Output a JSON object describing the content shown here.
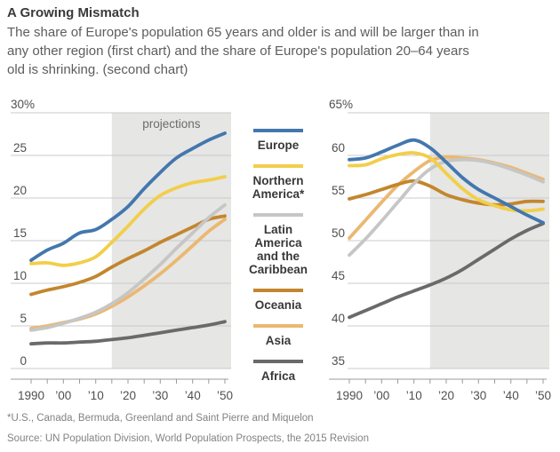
{
  "header": {
    "title": "A Growing Mismatch",
    "subtitle_lines": [
      "The share of Europe's population 65 years and older is and will be larger than in",
      "any other region (first chart) and the share of Europe's population 20–64 years",
      "old is shrinking. (second chart)"
    ]
  },
  "colors": {
    "projection_shade": "#E6E6E5",
    "gridline": "#CBCBCB",
    "axis": "#9B9B9B",
    "tick_label": "#4F4F4F",
    "note_label": "#6B6B6B",
    "europe": "#4377AD",
    "northern_america": "#F2CE4A",
    "latin_america": "#C6C6C4",
    "oceania": "#C3862E",
    "asia": "#EBB871",
    "africa": "#6A6A6A"
  },
  "legend": {
    "items": [
      {
        "label": "Europe",
        "color": "#4377AD"
      },
      {
        "label": "Northern America*",
        "color": "#F2CE4A"
      },
      {
        "label": "Latin America and the Caribbean",
        "color": "#C6C6C4"
      },
      {
        "label": "Oceania",
        "color": "#C3862E"
      },
      {
        "label": "Asia",
        "color": "#EBB871"
      },
      {
        "label": "Africa",
        "color": "#6A6A6A"
      }
    ]
  },
  "chart_data": [
    {
      "type": "line",
      "description": "Share of population 65 years and older, percent",
      "top_axis_label": "30%",
      "note": "projections",
      "x": [
        1990,
        1995,
        2000,
        2005,
        2010,
        2015,
        2020,
        2025,
        2030,
        2035,
        2040,
        2045,
        2050
      ],
      "x_tick_labels": [
        {
          "x": 1990,
          "label": "1990"
        },
        {
          "x": 2000,
          "label": "’00"
        },
        {
          "x": 2010,
          "label": "’10"
        },
        {
          "x": 2020,
          "label": "’20"
        },
        {
          "x": 2030,
          "label": "’30"
        },
        {
          "x": 2040,
          "label": "’40"
        },
        {
          "x": 2050,
          "label": "’50"
        }
      ],
      "ylim": [
        0,
        30
      ],
      "yticks": [
        0,
        5,
        10,
        15,
        20,
        25
      ],
      "shade_from": 2015,
      "grid": true,
      "series": [
        {
          "name": "Europe",
          "color": "#4377AD",
          "values": [
            12.7,
            13.9,
            14.7,
            15.9,
            16.3,
            17.5,
            19.0,
            21.1,
            23.0,
            24.7,
            25.8,
            26.8,
            27.6
          ]
        },
        {
          "name": "Northern America*",
          "color": "#F2CE4A",
          "values": [
            12.3,
            12.4,
            12.1,
            12.4,
            13.1,
            14.8,
            16.7,
            18.7,
            20.3,
            21.2,
            21.8,
            22.1,
            22.5
          ]
        },
        {
          "name": "Latin America and the Caribbean",
          "color": "#C6C6C4",
          "values": [
            4.5,
            4.8,
            5.3,
            5.9,
            6.6,
            7.6,
            8.9,
            10.5,
            12.2,
            14.1,
            15.9,
            17.7,
            19.2
          ]
        },
        {
          "name": "Oceania",
          "color": "#C3862E",
          "values": [
            8.7,
            9.2,
            9.6,
            10.1,
            10.8,
            11.9,
            12.9,
            13.8,
            14.8,
            15.7,
            16.6,
            17.5,
            17.9
          ]
        },
        {
          "name": "Asia",
          "color": "#EBB871",
          "values": [
            4.7,
            5.0,
            5.4,
            5.8,
            6.4,
            7.3,
            8.4,
            9.7,
            11.1,
            12.7,
            14.4,
            16.1,
            17.5
          ]
        },
        {
          "name": "Africa",
          "color": "#6A6A6A",
          "values": [
            2.9,
            3.0,
            3.0,
            3.1,
            3.2,
            3.4,
            3.6,
            3.9,
            4.2,
            4.5,
            4.8,
            5.1,
            5.5
          ]
        }
      ]
    },
    {
      "type": "line",
      "description": "Share of population 20–64 years old, percent",
      "top_axis_label": "65%",
      "note": "",
      "x": [
        1990,
        1995,
        2000,
        2005,
        2010,
        2015,
        2020,
        2025,
        2030,
        2035,
        2040,
        2045,
        2050
      ],
      "x_tick_labels": [
        {
          "x": 1990,
          "label": "1990"
        },
        {
          "x": 2000,
          "label": "’00"
        },
        {
          "x": 2010,
          "label": "’10"
        },
        {
          "x": 2020,
          "label": "’20"
        },
        {
          "x": 2030,
          "label": "’30"
        },
        {
          "x": 2040,
          "label": "’40"
        },
        {
          "x": 2050,
          "label": "’50"
        }
      ],
      "ylim": [
        35,
        65
      ],
      "yticks": [
        35,
        40,
        45,
        50,
        55,
        60
      ],
      "shade_from": 2015,
      "grid": true,
      "series": [
        {
          "name": "Europe",
          "color": "#4377AD",
          "values": [
            59.5,
            59.7,
            60.4,
            61.2,
            61.8,
            60.9,
            59.2,
            57.4,
            56.0,
            55.0,
            54.0,
            53.0,
            52.1
          ]
        },
        {
          "name": "Northern America*",
          "color": "#F2CE4A",
          "values": [
            58.8,
            58.9,
            59.6,
            60.1,
            60.3,
            59.7,
            57.9,
            56.1,
            54.8,
            54.1,
            53.6,
            53.5,
            53.7
          ]
        },
        {
          "name": "Latin America and the Caribbean",
          "color": "#C6C6C4",
          "values": [
            48.3,
            50.2,
            52.3,
            54.5,
            56.7,
            58.4,
            59.3,
            59.5,
            59.4,
            59.0,
            58.4,
            57.7,
            56.9
          ]
        },
        {
          "name": "Oceania",
          "color": "#C3862E",
          "values": [
            54.9,
            55.4,
            56.0,
            56.6,
            57.0,
            56.4,
            55.4,
            54.8,
            54.4,
            54.2,
            54.3,
            54.6,
            54.6
          ]
        },
        {
          "name": "Asia",
          "color": "#EBB871",
          "values": [
            50.3,
            52.4,
            54.5,
            56.5,
            58.1,
            59.4,
            59.8,
            59.7,
            59.5,
            59.1,
            58.6,
            57.9,
            57.2
          ]
        },
        {
          "name": "Africa",
          "color": "#6A6A6A",
          "values": [
            41.0,
            41.8,
            42.6,
            43.4,
            44.1,
            44.8,
            45.6,
            46.6,
            47.8,
            49.0,
            50.2,
            51.2,
            52.0
          ]
        }
      ]
    }
  ],
  "footer": {
    "footnote": "*U.S., Canada, Bermuda, Greenland and Saint Pierre and Miquelon",
    "source": "Source: UN Population Division, World Population Prospects, the 2015 Revision"
  }
}
